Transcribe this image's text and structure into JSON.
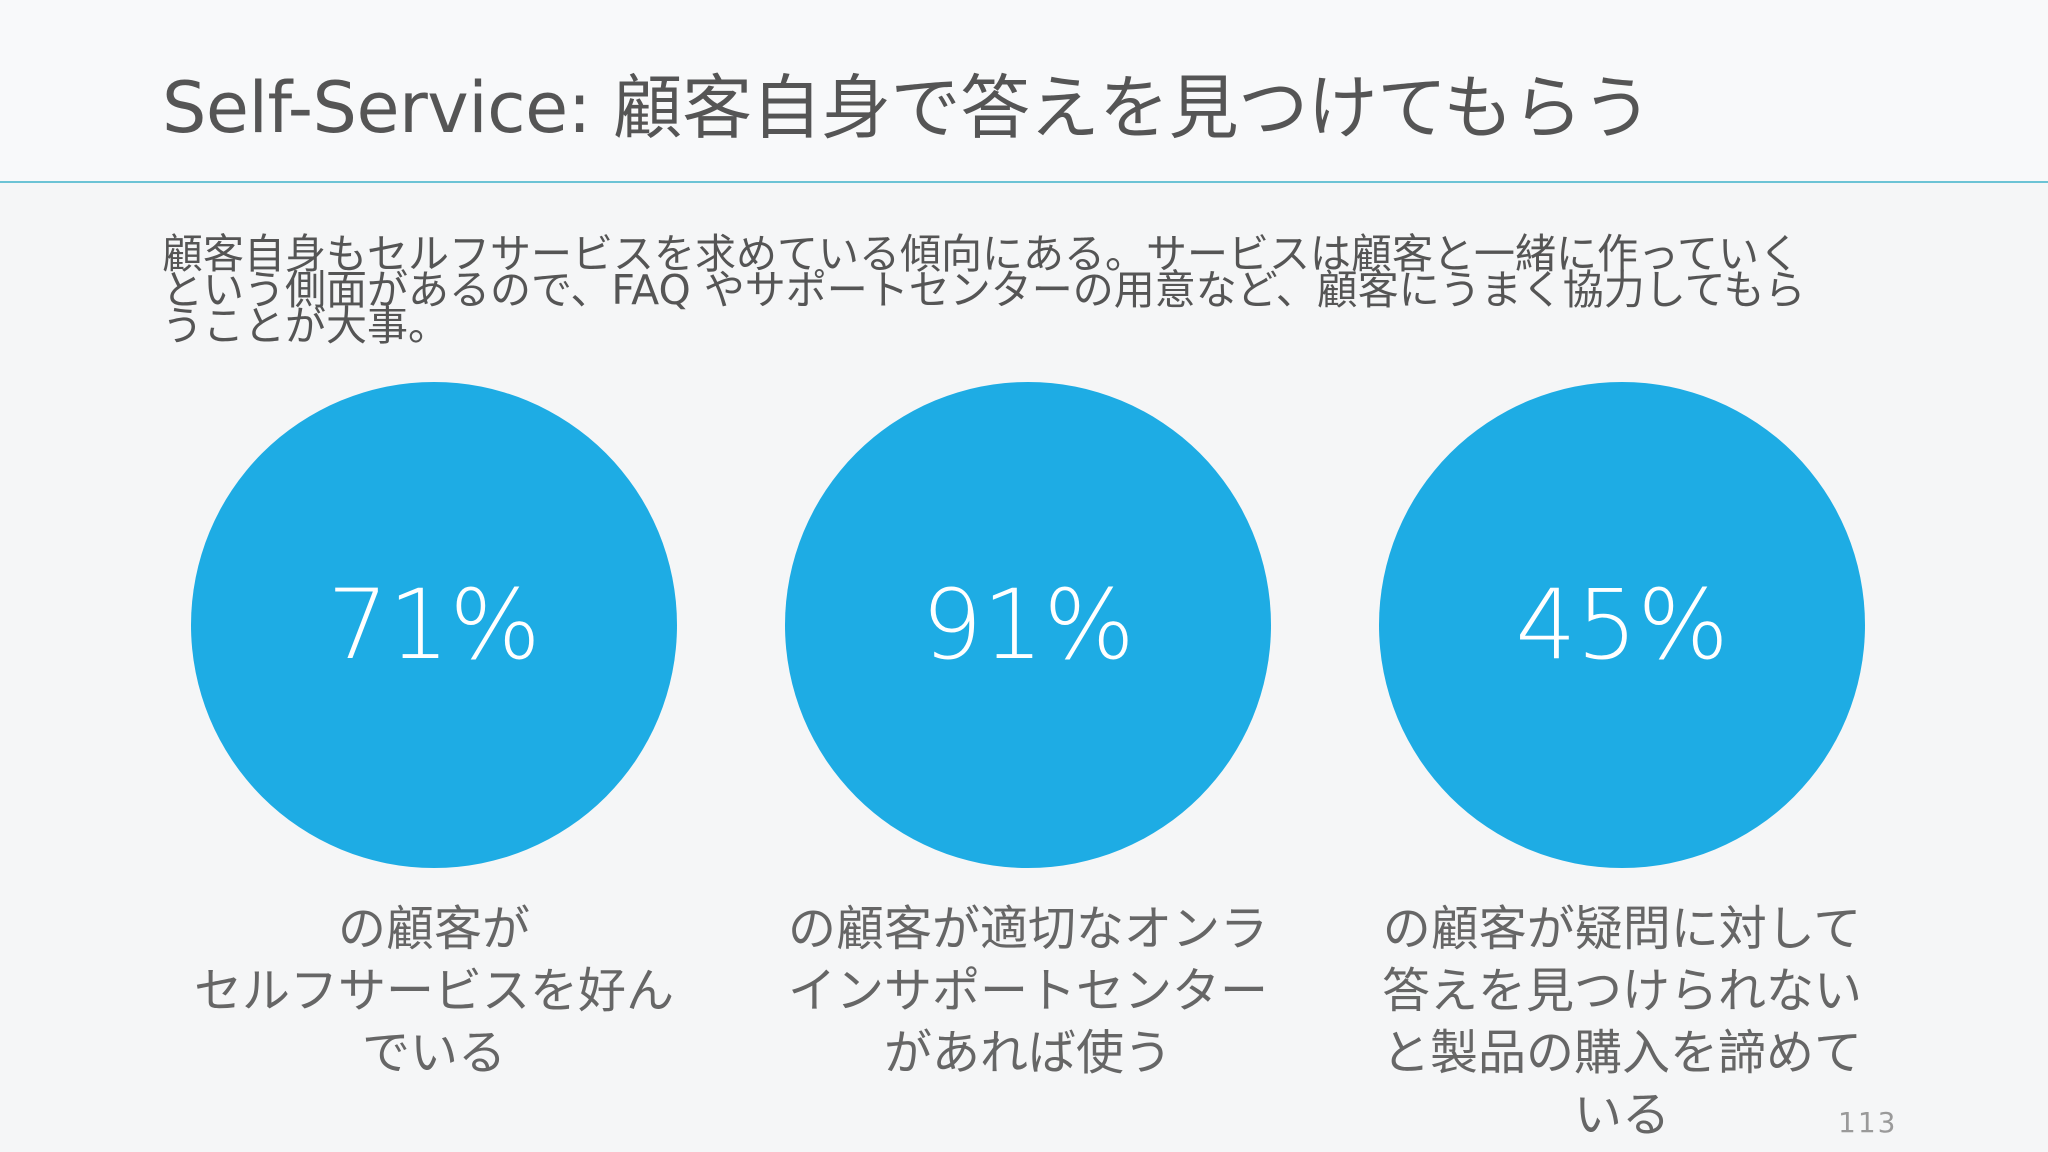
{
  "slide": {
    "title": "Self-Service: 顧客自身で答えを見つけてもらう",
    "intro_lines": [
      "顧客自身もセルフサービスを求めている傾向にある。サービスは顧客と一緒に作っていく",
      "という側面があるので、FAQ やサポートセンターの用意など、顧客にうまく協力してもら",
      "うことが大事。"
    ],
    "page_number": "113"
  },
  "stats": [
    {
      "value": "71%",
      "caption_lines": [
        "の顧客が",
        "セルフサービスを好ん",
        "でいる"
      ]
    },
    {
      "value": "91%",
      "caption_lines": [
        "の顧客が適切なオンラ",
        "インサポートセンター",
        "があれば使う"
      ]
    },
    {
      "value": "45%",
      "caption_lines": [
        "の顧客が疑問に対して",
        "答えを見つけられない",
        "と製品の購入を諦めて",
        "いる"
      ]
    }
  ],
  "colors": {
    "circle": "#1eace4",
    "rule": "#6cc3d5",
    "text": "#555555"
  }
}
